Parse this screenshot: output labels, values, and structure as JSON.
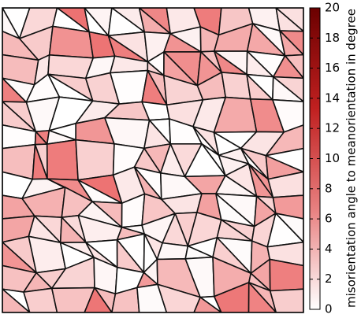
{
  "chart_data": {
    "type": "heatmap",
    "colorbar": {
      "label": "misorientation angle to meanorientation in degree",
      "clim": [
        0,
        20
      ],
      "ticks": [
        0,
        2,
        4,
        6,
        8,
        10,
        12,
        14,
        16,
        18,
        20
      ],
      "colors": [
        "#ffffff",
        "#e88080",
        "#c02020",
        "#6b0000"
      ]
    }
  }
}
